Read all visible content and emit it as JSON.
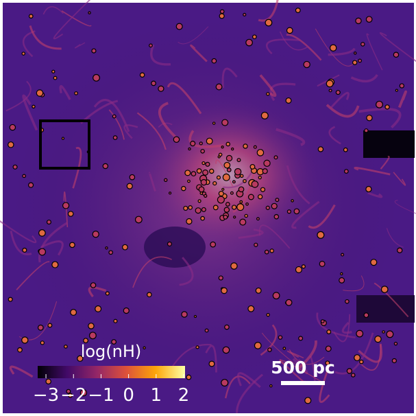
{
  "colorbar": {
    "label": "log(nH)",
    "lim": [
      -3.3,
      2.05
    ],
    "ticks": [
      {
        "value": -3,
        "label": "−3"
      },
      {
        "value": -2,
        "label": "−2"
      },
      {
        "value": -1,
        "label": "−1"
      },
      0,
      1,
      2
    ]
  },
  "scale_bar": {
    "label": "500 pc"
  }
}
